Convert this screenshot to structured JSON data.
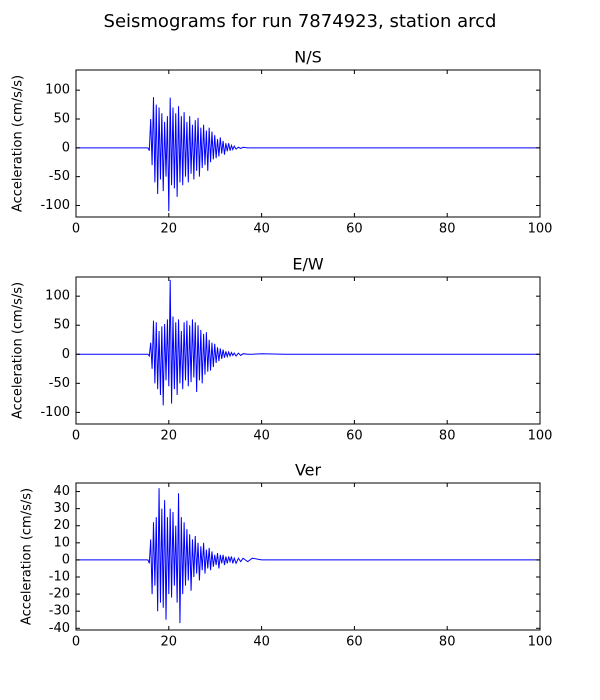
{
  "title": "Seismograms for run 7874923, station arcd",
  "chart_data": [
    {
      "type": "line",
      "title": "N/S",
      "ylabel": "Acceleration (cm/s/s)",
      "x": [
        0,
        14,
        15.5,
        15.8,
        16.1,
        16.4,
        16.7,
        17,
        17.3,
        17.6,
        17.9,
        18.2,
        18.5,
        18.8,
        19.1,
        19.4,
        19.7,
        20,
        20.3,
        20.6,
        20.9,
        21.2,
        21.5,
        21.8,
        22.1,
        22.4,
        22.7,
        23,
        23.3,
        23.6,
        23.9,
        24.2,
        24.5,
        24.8,
        25.1,
        25.4,
        25.7,
        26,
        26.3,
        26.6,
        26.9,
        27.2,
        27.5,
        27.8,
        28.1,
        28.4,
        28.7,
        29,
        29.3,
        29.6,
        29.9,
        30.2,
        30.5,
        30.8,
        31.1,
        31.4,
        31.7,
        32,
        32.3,
        32.6,
        32.9,
        33.2,
        33.5,
        33.8,
        34.1,
        34.5,
        35,
        35.5,
        36,
        37,
        38,
        40,
        45,
        100
      ],
      "series": [
        {
          "color": "#0000ff",
          "values": [
            0,
            0,
            0,
            -5,
            50,
            -30,
            88,
            -60,
            75,
            -80,
            70,
            -55,
            60,
            -75,
            45,
            -50,
            55,
            -110,
            87,
            -65,
            70,
            -70,
            60,
            -85,
            72,
            -60,
            55,
            -65,
            62,
            -50,
            45,
            -60,
            55,
            -45,
            40,
            -55,
            48,
            -40,
            52,
            -50,
            35,
            -35,
            40,
            -30,
            30,
            -40,
            35,
            -25,
            28,
            -20,
            22,
            -18,
            15,
            -15,
            18,
            -10,
            12,
            -12,
            8,
            -6,
            8,
            -5,
            4,
            -3,
            3,
            -2,
            1,
            -1,
            1,
            0,
            0,
            0,
            0,
            0
          ]
        }
      ],
      "xlim": [
        0,
        100
      ],
      "xticks": [
        0,
        20,
        40,
        60,
        80,
        100
      ],
      "ylim": [
        -120,
        135
      ],
      "yticks": [
        -100,
        -50,
        0,
        50,
        100
      ]
    },
    {
      "type": "line",
      "title": "E/W",
      "ylabel": "Acceleration (cm/s/s)",
      "x": [
        0,
        14,
        15.5,
        15.8,
        16.1,
        16.4,
        16.7,
        17,
        17.3,
        17.6,
        17.9,
        18.2,
        18.5,
        18.8,
        19.1,
        19.4,
        19.7,
        20,
        20.3,
        20.6,
        20.9,
        21.2,
        21.5,
        21.8,
        22.1,
        22.4,
        22.7,
        23,
        23.3,
        23.6,
        23.9,
        24.2,
        24.5,
        24.8,
        25.1,
        25.4,
        25.7,
        26,
        26.3,
        26.6,
        26.9,
        27.2,
        27.5,
        27.8,
        28.1,
        28.4,
        28.7,
        29,
        29.3,
        29.6,
        29.9,
        30.2,
        30.5,
        30.8,
        31.1,
        31.4,
        31.7,
        32,
        32.3,
        32.6,
        32.9,
        33.2,
        33.5,
        33.8,
        34.1,
        34.5,
        35,
        35.5,
        36,
        37,
        38,
        40,
        45,
        100
      ],
      "series": [
        {
          "color": "#0000ff",
          "values": [
            0,
            0,
            0,
            -3,
            20,
            -25,
            58,
            -50,
            55,
            -60,
            40,
            -70,
            48,
            -88,
            52,
            -45,
            60,
            -55,
            128,
            -85,
            65,
            -60,
            55,
            -70,
            60,
            -50,
            40,
            -60,
            55,
            -45,
            58,
            -55,
            50,
            -48,
            60,
            -40,
            55,
            -65,
            50,
            -45,
            42,
            -50,
            35,
            -35,
            38,
            -30,
            25,
            -28,
            20,
            -22,
            18,
            -15,
            12,
            -12,
            10,
            -8,
            8,
            -6,
            5,
            -4,
            4,
            -3,
            3,
            -2,
            2,
            -3,
            2,
            -2,
            1,
            0,
            0,
            1,
            0,
            0
          ]
        }
      ],
      "xlim": [
        0,
        100
      ],
      "xticks": [
        0,
        20,
        40,
        60,
        80,
        100
      ],
      "ylim": [
        -120,
        133
      ],
      "yticks": [
        -100,
        -50,
        0,
        50,
        100
      ]
    },
    {
      "type": "line",
      "title": "Ver",
      "ylabel": "Acceleration (cm/s/s)",
      "x": [
        0,
        14,
        15.5,
        15.8,
        16.1,
        16.4,
        16.7,
        17,
        17.3,
        17.6,
        17.9,
        18.2,
        18.5,
        18.8,
        19.1,
        19.4,
        19.7,
        20,
        20.3,
        20.6,
        20.9,
        21.2,
        21.5,
        21.8,
        22.1,
        22.4,
        22.7,
        23,
        23.3,
        23.6,
        23.9,
        24.2,
        24.5,
        24.8,
        25.1,
        25.4,
        25.7,
        26,
        26.3,
        26.6,
        26.9,
        27.2,
        27.5,
        27.8,
        28.1,
        28.4,
        28.7,
        29,
        29.3,
        29.6,
        29.9,
        30.2,
        30.5,
        30.8,
        31.1,
        31.4,
        31.7,
        32,
        32.3,
        32.6,
        32.9,
        33.2,
        33.5,
        33.8,
        34.1,
        34.5,
        35,
        35.5,
        36,
        37,
        38,
        40,
        45,
        100
      ],
      "series": [
        {
          "color": "#0000ff",
          "values": [
            0,
            0,
            0,
            -2,
            12,
            -20,
            22,
            -15,
            25,
            -30,
            42,
            -25,
            30,
            -28,
            35,
            -35,
            25,
            -20,
            30,
            -22,
            28,
            -15,
            20,
            -25,
            39,
            -37,
            25,
            -20,
            22,
            -15,
            18,
            -12,
            15,
            -18,
            12,
            -10,
            14,
            -8,
            10,
            -12,
            8,
            -6,
            10,
            -8,
            6,
            -5,
            7,
            -6,
            5,
            -4,
            3,
            -3,
            4,
            -5,
            3,
            -2,
            3,
            -3,
            2,
            -2,
            2,
            -1,
            2,
            -2,
            1,
            -2,
            1,
            -1,
            1,
            -1,
            1,
            0,
            0,
            0
          ]
        }
      ],
      "xlim": [
        0,
        100
      ],
      "xticks": [
        0,
        20,
        40,
        60,
        80,
        100
      ],
      "ylim": [
        -41,
        45
      ],
      "yticks": [
        -40,
        -30,
        -20,
        -10,
        0,
        10,
        20,
        30,
        40
      ]
    }
  ]
}
